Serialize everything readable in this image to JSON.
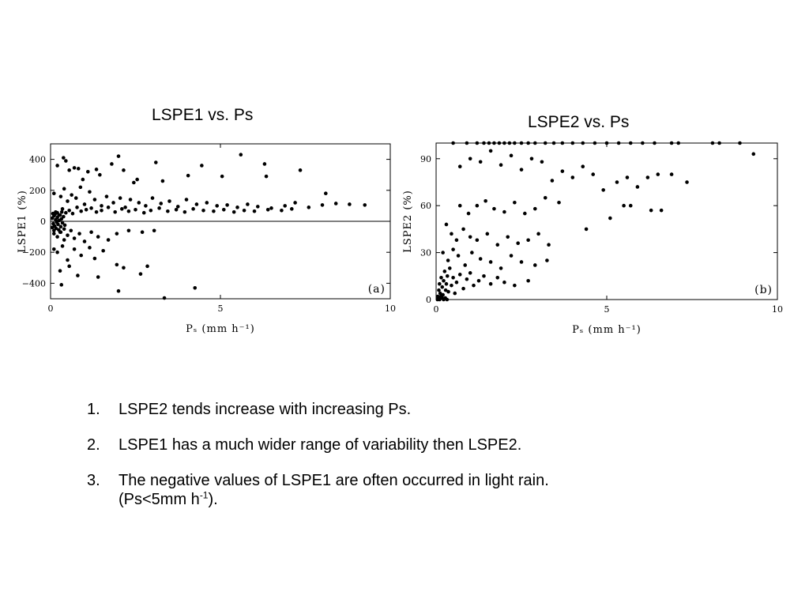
{
  "chart_data": [
    {
      "type": "scatter",
      "title": "LSPE1 vs. Ps",
      "panel_label": "(a)",
      "xlabel": "Pₛ (mm h⁻¹)",
      "ylabel": "LSPE1 (%)",
      "xlim": [
        0,
        10
      ],
      "ylim": [
        -500,
        500
      ],
      "xticks": [
        "0",
        "5",
        "10"
      ],
      "yticks": [
        "400",
        "200",
        "0",
        "−200",
        "−400"
      ],
      "zero_line": true,
      "grid": false,
      "points": [
        [
          0.2,
          360
        ],
        [
          0.38,
          410
        ],
        [
          0.45,
          390
        ],
        [
          0.55,
          330
        ],
        [
          0.7,
          345
        ],
        [
          0.82,
          340
        ],
        [
          0.95,
          270
        ],
        [
          1.1,
          320
        ],
        [
          1.35,
          335
        ],
        [
          1.45,
          300
        ],
        [
          1.8,
          370
        ],
        [
          2.0,
          420
        ],
        [
          2.15,
          330
        ],
        [
          2.45,
          250
        ],
        [
          2.55,
          270
        ],
        [
          3.1,
          380
        ],
        [
          3.3,
          260
        ],
        [
          4.05,
          295
        ],
        [
          4.45,
          360
        ],
        [
          5.05,
          290
        ],
        [
          5.6,
          430
        ],
        [
          6.3,
          370
        ],
        [
          6.35,
          290
        ],
        [
          7.35,
          330
        ],
        [
          8.1,
          180
        ],
        [
          0.1,
          180
        ],
        [
          0.3,
          160
        ],
        [
          0.4,
          210
        ],
        [
          0.5,
          130
        ],
        [
          0.62,
          170
        ],
        [
          0.75,
          150
        ],
        [
          0.88,
          220
        ],
        [
          1.0,
          110
        ],
        [
          1.15,
          190
        ],
        [
          1.3,
          140
        ],
        [
          1.5,
          100
        ],
        [
          1.65,
          160
        ],
        [
          1.85,
          120
        ],
        [
          2.05,
          150
        ],
        [
          2.2,
          90
        ],
        [
          2.35,
          140
        ],
        [
          2.6,
          120
        ],
        [
          2.8,
          100
        ],
        [
          3.0,
          150
        ],
        [
          3.25,
          115
        ],
        [
          3.5,
          130
        ],
        [
          3.75,
          95
        ],
        [
          4.0,
          140
        ],
        [
          4.3,
          110
        ],
        [
          4.6,
          120
        ],
        [
          4.9,
          100
        ],
        [
          5.2,
          105
        ],
        [
          5.5,
          90
        ],
        [
          5.8,
          110
        ],
        [
          6.1,
          95
        ],
        [
          6.5,
          85
        ],
        [
          6.9,
          100
        ],
        [
          7.2,
          120
        ],
        [
          7.6,
          90
        ],
        [
          8.0,
          105
        ],
        [
          8.4,
          115
        ],
        [
          8.8,
          110
        ],
        [
          9.25,
          105
        ],
        [
          0.15,
          60
        ],
        [
          0.25,
          40
        ],
        [
          0.35,
          80
        ],
        [
          0.45,
          55
        ],
        [
          0.55,
          70
        ],
        [
          0.65,
          50
        ],
        [
          0.78,
          90
        ],
        [
          0.9,
          65
        ],
        [
          1.05,
          75
        ],
        [
          1.2,
          85
        ],
        [
          1.35,
          60
        ],
        [
          1.5,
          70
        ],
        [
          1.7,
          90
        ],
        [
          1.9,
          60
        ],
        [
          2.1,
          80
        ],
        [
          2.3,
          65
        ],
        [
          2.5,
          75
        ],
        [
          2.75,
          55
        ],
        [
          2.95,
          70
        ],
        [
          3.2,
          85
        ],
        [
          3.45,
          65
        ],
        [
          3.7,
          75
        ],
        [
          3.95,
          60
        ],
        [
          4.2,
          80
        ],
        [
          4.5,
          70
        ],
        [
          4.8,
          65
        ],
        [
          5.1,
          75
        ],
        [
          5.4,
          60
        ],
        [
          5.7,
          70
        ],
        [
          6.0,
          65
        ],
        [
          6.4,
          75
        ],
        [
          6.8,
          70
        ],
        [
          7.1,
          80
        ],
        [
          0.05,
          20
        ],
        [
          0.08,
          -15
        ],
        [
          0.1,
          35
        ],
        [
          0.12,
          -30
        ],
        [
          0.15,
          10
        ],
        [
          0.18,
          -5
        ],
        [
          0.2,
          25
        ],
        [
          0.22,
          -20
        ],
        [
          0.25,
          5
        ],
        [
          0.28,
          40
        ],
        [
          0.3,
          -35
        ],
        [
          0.32,
          15
        ],
        [
          0.35,
          -10
        ],
        [
          0.38,
          30
        ],
        [
          0.42,
          -25
        ],
        [
          0.05,
          -40
        ],
        [
          0.07,
          50
        ],
        [
          0.1,
          -60
        ],
        [
          0.13,
          45
        ],
        [
          0.16,
          -45
        ],
        [
          0.2,
          55
        ],
        [
          0.24,
          -55
        ],
        [
          0.28,
          -70
        ],
        [
          0.33,
          60
        ],
        [
          0.4,
          -50
        ],
        [
          0.1,
          -80
        ],
        [
          0.2,
          -100
        ],
        [
          0.3,
          -70
        ],
        [
          0.4,
          -120
        ],
        [
          0.5,
          -90
        ],
        [
          0.6,
          -60
        ],
        [
          0.7,
          -110
        ],
        [
          0.85,
          -80
        ],
        [
          1.0,
          -130
        ],
        [
          1.2,
          -70
        ],
        [
          1.4,
          -100
        ],
        [
          1.7,
          -120
        ],
        [
          1.95,
          -80
        ],
        [
          2.3,
          -60
        ],
        [
          2.7,
          -70
        ],
        [
          3.05,
          -60
        ],
        [
          0.2,
          -200
        ],
        [
          0.35,
          -160
        ],
        [
          0.5,
          -250
        ],
        [
          0.7,
          -180
        ],
        [
          0.9,
          -220
        ],
        [
          1.15,
          -170
        ],
        [
          1.3,
          -240
        ],
        [
          1.55,
          -190
        ],
        [
          1.95,
          -280
        ],
        [
          2.15,
          -300
        ],
        [
          2.85,
          -290
        ],
        [
          0.1,
          -180
        ],
        [
          0.28,
          -320
        ],
        [
          0.55,
          -290
        ],
        [
          0.8,
          -350
        ],
        [
          1.4,
          -360
        ],
        [
          2.65,
          -340
        ],
        [
          0.32,
          -410
        ],
        [
          2.0,
          -450
        ],
        [
          4.25,
          -430
        ],
        [
          3.35,
          -495
        ]
      ]
    },
    {
      "type": "scatter",
      "title": "LSPE2 vs. Ps",
      "panel_label": "(b)",
      "xlabel": "Pₛ (mm h⁻¹)",
      "ylabel": "LSPE2 (%)",
      "xlim": [
        0,
        10
      ],
      "ylim": [
        0,
        100
      ],
      "xticks": [
        "0",
        "5",
        "10"
      ],
      "yticks": [
        "90",
        "60",
        "30",
        "0"
      ],
      "zero_line": false,
      "grid": false,
      "points": [
        [
          0.5,
          100
        ],
        [
          0.9,
          100
        ],
        [
          1.2,
          100
        ],
        [
          1.4,
          100
        ],
        [
          1.55,
          100
        ],
        [
          1.7,
          100
        ],
        [
          1.85,
          100
        ],
        [
          2.0,
          100
        ],
        [
          2.15,
          100
        ],
        [
          2.3,
          100
        ],
        [
          2.5,
          100
        ],
        [
          2.7,
          100
        ],
        [
          2.9,
          100
        ],
        [
          3.2,
          100
        ],
        [
          3.45,
          100
        ],
        [
          3.7,
          100
        ],
        [
          4.0,
          100
        ],
        [
          4.3,
          100
        ],
        [
          4.65,
          100
        ],
        [
          5.0,
          100
        ],
        [
          5.35,
          100
        ],
        [
          5.7,
          100
        ],
        [
          6.05,
          100
        ],
        [
          6.4,
          100
        ],
        [
          6.9,
          100
        ],
        [
          7.1,
          100
        ],
        [
          8.1,
          100
        ],
        [
          8.3,
          100
        ],
        [
          8.9,
          100
        ],
        [
          9.3,
          93
        ],
        [
          7.35,
          75
        ],
        [
          6.9,
          80
        ],
        [
          6.5,
          80
        ],
        [
          6.2,
          78
        ],
        [
          5.9,
          72
        ],
        [
          5.6,
          78
        ],
        [
          5.3,
          75
        ],
        [
          4.9,
          70
        ],
        [
          4.6,
          80
        ],
        [
          4.3,
          85
        ],
        [
          4.0,
          78
        ],
        [
          3.7,
          82
        ],
        [
          3.4,
          76
        ],
        [
          3.1,
          88
        ],
        [
          2.8,
          90
        ],
        [
          2.5,
          83
        ],
        [
          2.2,
          92
        ],
        [
          1.9,
          86
        ],
        [
          1.6,
          95
        ],
        [
          1.3,
          88
        ],
        [
          1.0,
          90
        ],
        [
          0.7,
          85
        ],
        [
          6.6,
          57
        ],
        [
          6.3,
          57
        ],
        [
          5.7,
          60
        ],
        [
          5.5,
          60
        ],
        [
          5.1,
          52
        ],
        [
          4.4,
          45
        ],
        [
          3.6,
          62
        ],
        [
          3.2,
          65
        ],
        [
          2.9,
          58
        ],
        [
          2.6,
          55
        ],
        [
          2.3,
          62
        ],
        [
          2.0,
          56
        ],
        [
          1.7,
          58
        ],
        [
          1.45,
          63
        ],
        [
          1.2,
          60
        ],
        [
          0.95,
          55
        ],
        [
          0.7,
          60
        ],
        [
          0.3,
          48
        ],
        [
          0.45,
          42
        ],
        [
          0.6,
          38
        ],
        [
          0.8,
          45
        ],
        [
          1.0,
          40
        ],
        [
          1.2,
          38
        ],
        [
          1.5,
          42
        ],
        [
          1.8,
          35
        ],
        [
          2.1,
          40
        ],
        [
          2.4,
          36
        ],
        [
          2.7,
          38
        ],
        [
          3.0,
          42
        ],
        [
          3.3,
          35
        ],
        [
          0.2,
          30
        ],
        [
          0.35,
          25
        ],
        [
          0.5,
          32
        ],
        [
          0.65,
          28
        ],
        [
          0.85,
          22
        ],
        [
          1.05,
          30
        ],
        [
          1.3,
          26
        ],
        [
          1.6,
          24
        ],
        [
          1.9,
          20
        ],
        [
          2.2,
          28
        ],
        [
          2.5,
          24
        ],
        [
          2.9,
          22
        ],
        [
          3.25,
          25
        ],
        [
          0.05,
          2
        ],
        [
          0.08,
          6
        ],
        [
          0.1,
          10
        ],
        [
          0.12,
          4
        ],
        [
          0.15,
          14
        ],
        [
          0.18,
          8
        ],
        [
          0.2,
          3
        ],
        [
          0.22,
          12
        ],
        [
          0.25,
          18
        ],
        [
          0.28,
          6
        ],
        [
          0.3,
          10
        ],
        [
          0.33,
          15
        ],
        [
          0.36,
          5
        ],
        [
          0.4,
          20
        ],
        [
          0.45,
          9
        ],
        [
          0.5,
          14
        ],
        [
          0.55,
          4
        ],
        [
          0.6,
          11
        ],
        [
          0.7,
          16
        ],
        [
          0.8,
          7
        ],
        [
          0.9,
          13
        ],
        [
          1.0,
          17
        ],
        [
          1.1,
          9
        ],
        [
          1.25,
          12
        ],
        [
          1.4,
          15
        ],
        [
          1.6,
          10
        ],
        [
          1.8,
          14
        ],
        [
          2.0,
          11
        ],
        [
          2.3,
          9
        ],
        [
          2.7,
          12
        ],
        [
          0.04,
          0
        ],
        [
          0.07,
          1
        ],
        [
          0.1,
          0
        ],
        [
          0.14,
          2
        ],
        [
          0.18,
          1
        ],
        [
          0.22,
          0
        ],
        [
          0.27,
          1
        ],
        [
          0.32,
          0
        ]
      ]
    }
  ],
  "notes": [
    {
      "num": "1.",
      "text": "LSPE2 tends increase with increasing Ps."
    },
    {
      "num": "2.",
      "text": "LSPE1 has a much wider range of variability then LSPE2."
    },
    {
      "num": "3.",
      "text": "The negative values of LSPE1 are often occurred in light rain.",
      "text2_prefix": "(Ps<5mm h",
      "text2_sup": "-1",
      "text2_suffix": ")."
    }
  ]
}
